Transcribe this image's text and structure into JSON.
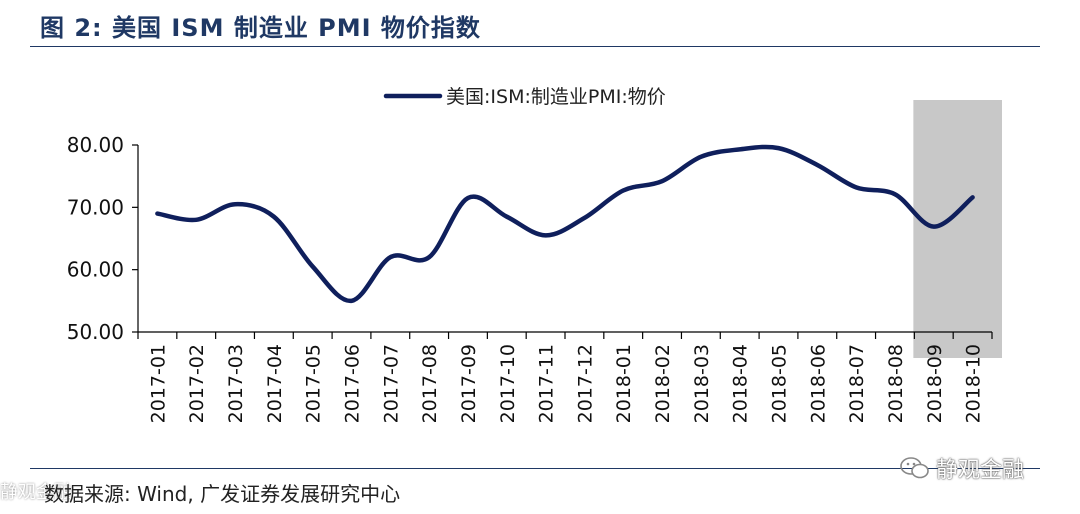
{
  "title": "图 2:  美国 ISM 制造业 PMI 物价指数",
  "source": "数据来源:  Wind,  广发证券发展研究中心",
  "watermark": "静观金融",
  "corner_watermark": "静观金融",
  "colors": {
    "title": "#1f3864",
    "line": "#0f1f5c",
    "shade": "#c8c8c8"
  },
  "chart_data": {
    "type": "line",
    "title": "",
    "xlabel": "",
    "ylabel": "",
    "ylim": [
      50,
      80
    ],
    "yticks": [
      "50.00",
      "60.00",
      "70.00",
      "80.00"
    ],
    "categories": [
      "2017-01",
      "2017-02",
      "2017-03",
      "2017-04",
      "2017-05",
      "2017-06",
      "2017-07",
      "2017-08",
      "2017-09",
      "2017-10",
      "2017-11",
      "2017-12",
      "2018-01",
      "2018-02",
      "2018-03",
      "2018-04",
      "2018-05",
      "2018-06",
      "2018-07",
      "2018-08",
      "2018-09",
      "2018-10"
    ],
    "series": [
      {
        "name": "美国:ISM:制造业PMI:物价",
        "values": [
          69.0,
          68.0,
          70.5,
          68.5,
          60.5,
          55.0,
          62.0,
          62.0,
          71.5,
          68.5,
          65.5,
          68.3,
          72.7,
          74.2,
          78.1,
          79.3,
          79.5,
          76.8,
          73.2,
          72.1,
          66.9,
          71.6
        ]
      }
    ],
    "highlight": {
      "from": "2018-09",
      "to": "2018-10"
    },
    "legend_position": "top-center"
  }
}
